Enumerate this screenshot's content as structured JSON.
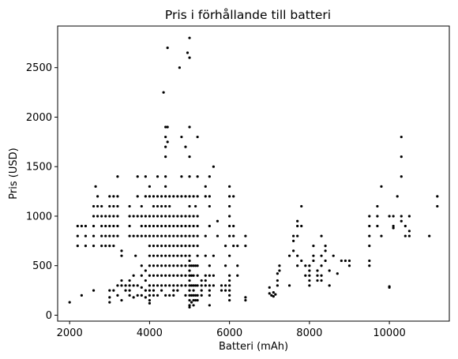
{
  "chart_data": {
    "type": "scatter",
    "title": "Pris i förhållande till batteri",
    "xlabel": "Batteri (mAh)",
    "ylabel": "Pris (USD)",
    "xlim": [
      1700,
      11500
    ],
    "ylim": [
      -60,
      2920
    ],
    "xticks": [
      2000,
      4000,
      6000,
      8000,
      10000
    ],
    "yticks": [
      0,
      500,
      1000,
      1500,
      2000,
      2500
    ],
    "grid": false,
    "legend": "none",
    "marker_color": "#000000",
    "points": [
      [
        2000,
        130
      ],
      [
        2300,
        200
      ],
      [
        2600,
        250
      ],
      [
        2200,
        900
      ],
      [
        2200,
        800
      ],
      [
        2200,
        700
      ],
      [
        2300,
        900
      ],
      [
        2400,
        900
      ],
      [
        2400,
        800
      ],
      [
        2400,
        700
      ],
      [
        2600,
        1100
      ],
      [
        2600,
        1000
      ],
      [
        2600,
        900
      ],
      [
        2600,
        800
      ],
      [
        2600,
        700
      ],
      [
        2650,
        1300
      ],
      [
        2700,
        1200
      ],
      [
        2700,
        1100
      ],
      [
        2700,
        1000
      ],
      [
        2800,
        1100
      ],
      [
        2800,
        1000
      ],
      [
        2800,
        900
      ],
      [
        2800,
        800
      ],
      [
        2800,
        700
      ],
      [
        2900,
        1000
      ],
      [
        2900,
        900
      ],
      [
        2900,
        800
      ],
      [
        2900,
        700
      ],
      [
        3000,
        1200
      ],
      [
        3000,
        1100
      ],
      [
        3000,
        1000
      ],
      [
        3000,
        900
      ],
      [
        3000,
        800
      ],
      [
        3000,
        700
      ],
      [
        3000,
        250
      ],
      [
        3000,
        180
      ],
      [
        3000,
        130
      ],
      [
        3100,
        1200
      ],
      [
        3100,
        1100
      ],
      [
        3100,
        1000
      ],
      [
        3100,
        900
      ],
      [
        3100,
        800
      ],
      [
        3100,
        700
      ],
      [
        3100,
        250
      ],
      [
        3200,
        1400
      ],
      [
        3200,
        1200
      ],
      [
        3200,
        1100
      ],
      [
        3200,
        1000
      ],
      [
        3200,
        900
      ],
      [
        3200,
        800
      ],
      [
        3200,
        300
      ],
      [
        3200,
        200
      ],
      [
        3300,
        650
      ],
      [
        3300,
        600
      ],
      [
        3300,
        350
      ],
      [
        3300,
        300
      ],
      [
        3300,
        150
      ],
      [
        3400,
        300
      ],
      [
        3400,
        250
      ],
      [
        3500,
        1100
      ],
      [
        3500,
        1000
      ],
      [
        3500,
        900
      ],
      [
        3500,
        800
      ],
      [
        3500,
        350
      ],
      [
        3500,
        300
      ],
      [
        3500,
        250
      ],
      [
        3500,
        200
      ],
      [
        3600,
        1000
      ],
      [
        3600,
        800
      ],
      [
        3600,
        400
      ],
      [
        3600,
        300
      ],
      [
        3600,
        180
      ],
      [
        3650,
        600
      ],
      [
        3700,
        1400
      ],
      [
        3700,
        1200
      ],
      [
        3700,
        1000
      ],
      [
        3700,
        800
      ],
      [
        3700,
        300
      ],
      [
        3700,
        200
      ],
      [
        3800,
        1100
      ],
      [
        3800,
        1000
      ],
      [
        3800,
        900
      ],
      [
        3800,
        800
      ],
      [
        3800,
        500
      ],
      [
        3800,
        400
      ],
      [
        3800,
        280
      ],
      [
        3800,
        200
      ],
      [
        3900,
        1400
      ],
      [
        3900,
        1200
      ],
      [
        3900,
        1000
      ],
      [
        3900,
        900
      ],
      [
        3900,
        800
      ],
      [
        3900,
        450
      ],
      [
        3900,
        350
      ],
      [
        3900,
        250
      ],
      [
        3900,
        180
      ],
      [
        4000,
        1300
      ],
      [
        4000,
        1200
      ],
      [
        4000,
        1000
      ],
      [
        4000,
        900
      ],
      [
        4000,
        800
      ],
      [
        4000,
        700
      ],
      [
        4000,
        600
      ],
      [
        4000,
        500
      ],
      [
        4000,
        400
      ],
      [
        4000,
        300
      ],
      [
        4000,
        250
      ],
      [
        4000,
        200
      ],
      [
        4000,
        150
      ],
      [
        4000,
        120
      ],
      [
        4100,
        1200
      ],
      [
        4100,
        1100
      ],
      [
        4100,
        1000
      ],
      [
        4100,
        900
      ],
      [
        4100,
        800
      ],
      [
        4100,
        700
      ],
      [
        4100,
        600
      ],
      [
        4100,
        500
      ],
      [
        4100,
        400
      ],
      [
        4100,
        300
      ],
      [
        4100,
        250
      ],
      [
        4100,
        200
      ],
      [
        4200,
        1400
      ],
      [
        4200,
        1200
      ],
      [
        4200,
        1100
      ],
      [
        4200,
        1000
      ],
      [
        4200,
        900
      ],
      [
        4200,
        800
      ],
      [
        4200,
        700
      ],
      [
        4200,
        600
      ],
      [
        4200,
        500
      ],
      [
        4200,
        400
      ],
      [
        4200,
        300
      ],
      [
        4200,
        200
      ],
      [
        4300,
        1200
      ],
      [
        4300,
        1100
      ],
      [
        4300,
        1000
      ],
      [
        4300,
        900
      ],
      [
        4300,
        800
      ],
      [
        4300,
        700
      ],
      [
        4300,
        600
      ],
      [
        4300,
        500
      ],
      [
        4300,
        400
      ],
      [
        4300,
        300
      ],
      [
        4300,
        250
      ],
      [
        4350,
        2250
      ],
      [
        4400,
        1900
      ],
      [
        4400,
        1800
      ],
      [
        4400,
        1700
      ],
      [
        4400,
        1600
      ],
      [
        4400,
        1400
      ],
      [
        4400,
        1300
      ],
      [
        4400,
        1200
      ],
      [
        4400,
        1100
      ],
      [
        4400,
        1000
      ],
      [
        4400,
        900
      ],
      [
        4400,
        800
      ],
      [
        4400,
        700
      ],
      [
        4400,
        600
      ],
      [
        4400,
        500
      ],
      [
        4400,
        400
      ],
      [
        4400,
        300
      ],
      [
        4400,
        200
      ],
      [
        4450,
        2700
      ],
      [
        4450,
        1900
      ],
      [
        4450,
        1750
      ],
      [
        4500,
        1200
      ],
      [
        4500,
        1100
      ],
      [
        4500,
        1000
      ],
      [
        4500,
        900
      ],
      [
        4500,
        800
      ],
      [
        4500,
        700
      ],
      [
        4500,
        600
      ],
      [
        4500,
        500
      ],
      [
        4500,
        400
      ],
      [
        4500,
        300
      ],
      [
        4500,
        200
      ],
      [
        4600,
        1200
      ],
      [
        4600,
        1000
      ],
      [
        4600,
        900
      ],
      [
        4600,
        800
      ],
      [
        4600,
        700
      ],
      [
        4600,
        600
      ],
      [
        4600,
        500
      ],
      [
        4600,
        400
      ],
      [
        4600,
        300
      ],
      [
        4600,
        250
      ],
      [
        4600,
        200
      ],
      [
        4700,
        1200
      ],
      [
        4700,
        1000
      ],
      [
        4700,
        900
      ],
      [
        4700,
        800
      ],
      [
        4700,
        700
      ],
      [
        4700,
        600
      ],
      [
        4700,
        500
      ],
      [
        4700,
        400
      ],
      [
        4700,
        300
      ],
      [
        4700,
        250
      ],
      [
        4750,
        2500
      ],
      [
        4800,
        1800
      ],
      [
        4800,
        1400
      ],
      [
        4800,
        1200
      ],
      [
        4800,
        1000
      ],
      [
        4800,
        900
      ],
      [
        4800,
        800
      ],
      [
        4800,
        700
      ],
      [
        4800,
        600
      ],
      [
        4800,
        500
      ],
      [
        4800,
        400
      ],
      [
        4800,
        300
      ],
      [
        4900,
        1700
      ],
      [
        4900,
        1200
      ],
      [
        4900,
        1000
      ],
      [
        4900,
        900
      ],
      [
        4900,
        800
      ],
      [
        4900,
        700
      ],
      [
        4900,
        600
      ],
      [
        4900,
        500
      ],
      [
        4900,
        400
      ],
      [
        4900,
        300
      ],
      [
        4900,
        200
      ],
      [
        4950,
        2650
      ],
      [
        5000,
        2800
      ],
      [
        5000,
        2600
      ],
      [
        5000,
        1900
      ],
      [
        5000,
        1600
      ],
      [
        5000,
        1400
      ],
      [
        5000,
        1200
      ],
      [
        5000,
        1100
      ],
      [
        5000,
        1000
      ],
      [
        5000,
        900
      ],
      [
        5000,
        800
      ],
      [
        5000,
        700
      ],
      [
        5000,
        600
      ],
      [
        5000,
        550
      ],
      [
        5000,
        500
      ],
      [
        5000,
        450
      ],
      [
        5000,
        400
      ],
      [
        5000,
        350
      ],
      [
        5000,
        300
      ],
      [
        5000,
        250
      ],
      [
        5000,
        200
      ],
      [
        5000,
        150
      ],
      [
        5000,
        100
      ],
      [
        5000,
        80
      ],
      [
        5050,
        500
      ],
      [
        5050,
        400
      ],
      [
        5050,
        300
      ],
      [
        5050,
        200
      ],
      [
        5050,
        130
      ],
      [
        5100,
        1200
      ],
      [
        5100,
        1000
      ],
      [
        5100,
        900
      ],
      [
        5100,
        800
      ],
      [
        5100,
        700
      ],
      [
        5100,
        500
      ],
      [
        5100,
        400
      ],
      [
        5100,
        300
      ],
      [
        5100,
        250
      ],
      [
        5100,
        200
      ],
      [
        5100,
        150
      ],
      [
        5100,
        100
      ],
      [
        5150,
        1100
      ],
      [
        5150,
        500
      ],
      [
        5150,
        300
      ],
      [
        5150,
        200
      ],
      [
        5150,
        150
      ],
      [
        5200,
        1800
      ],
      [
        5200,
        1400
      ],
      [
        5200,
        1200
      ],
      [
        5200,
        1000
      ],
      [
        5200,
        900
      ],
      [
        5200,
        800
      ],
      [
        5200,
        700
      ],
      [
        5200,
        600
      ],
      [
        5200,
        500
      ],
      [
        5200,
        400
      ],
      [
        5200,
        300
      ],
      [
        5200,
        200
      ],
      [
        5200,
        150
      ],
      [
        5300,
        350
      ],
      [
        5300,
        300
      ],
      [
        5300,
        250
      ],
      [
        5300,
        200
      ],
      [
        5400,
        1300
      ],
      [
        5400,
        1200
      ],
      [
        5400,
        800
      ],
      [
        5400,
        600
      ],
      [
        5400,
        400
      ],
      [
        5400,
        350
      ],
      [
        5400,
        300
      ],
      [
        5500,
        1400
      ],
      [
        5500,
        1200
      ],
      [
        5500,
        1100
      ],
      [
        5500,
        900
      ],
      [
        5500,
        500
      ],
      [
        5500,
        400
      ],
      [
        5500,
        300
      ],
      [
        5500,
        250
      ],
      [
        5500,
        200
      ],
      [
        5500,
        100
      ],
      [
        5600,
        1500
      ],
      [
        5600,
        600
      ],
      [
        5600,
        400
      ],
      [
        5600,
        300
      ],
      [
        5700,
        950
      ],
      [
        5700,
        800
      ],
      [
        5800,
        300
      ],
      [
        5800,
        250
      ],
      [
        5900,
        700
      ],
      [
        5900,
        500
      ],
      [
        5900,
        300
      ],
      [
        5900,
        250
      ],
      [
        6000,
        1300
      ],
      [
        6000,
        1200
      ],
      [
        6000,
        1100
      ],
      [
        6000,
        1000
      ],
      [
        6000,
        900
      ],
      [
        6000,
        800
      ],
      [
        6000,
        600
      ],
      [
        6000,
        400
      ],
      [
        6000,
        350
      ],
      [
        6000,
        300
      ],
      [
        6000,
        250
      ],
      [
        6000,
        200
      ],
      [
        6000,
        150
      ],
      [
        6100,
        1200
      ],
      [
        6100,
        900
      ],
      [
        6100,
        800
      ],
      [
        6100,
        700
      ],
      [
        6200,
        700
      ],
      [
        6200,
        500
      ],
      [
        6200,
        400
      ],
      [
        6400,
        800
      ],
      [
        6400,
        700
      ],
      [
        6400,
        180
      ],
      [
        6400,
        150
      ],
      [
        7000,
        280
      ],
      [
        7000,
        220
      ],
      [
        7050,
        200
      ],
      [
        7100,
        230
      ],
      [
        7100,
        190
      ],
      [
        7150,
        210
      ],
      [
        7200,
        420
      ],
      [
        7200,
        350
      ],
      [
        7200,
        300
      ],
      [
        7250,
        500
      ],
      [
        7250,
        450
      ],
      [
        7500,
        600
      ],
      [
        7500,
        300
      ],
      [
        7600,
        800
      ],
      [
        7600,
        750
      ],
      [
        7600,
        650
      ],
      [
        7700,
        950
      ],
      [
        7700,
        900
      ],
      [
        7700,
        800
      ],
      [
        7700,
        600
      ],
      [
        7700,
        500
      ],
      [
        7800,
        1100
      ],
      [
        7800,
        900
      ],
      [
        7800,
        550
      ],
      [
        7900,
        500
      ],
      [
        7900,
        400
      ],
      [
        8000,
        500
      ],
      [
        8000,
        450
      ],
      [
        8000,
        400
      ],
      [
        8000,
        350
      ],
      [
        8000,
        300
      ],
      [
        8100,
        700
      ],
      [
        8100,
        600
      ],
      [
        8100,
        550
      ],
      [
        8200,
        450
      ],
      [
        8200,
        400
      ],
      [
        8200,
        350
      ],
      [
        8300,
        800
      ],
      [
        8300,
        600
      ],
      [
        8300,
        500
      ],
      [
        8300,
        400
      ],
      [
        8300,
        350
      ],
      [
        8400,
        700
      ],
      [
        8400,
        650
      ],
      [
        8400,
        550
      ],
      [
        8500,
        300
      ],
      [
        8500,
        450
      ],
      [
        8600,
        600
      ],
      [
        8700,
        420
      ],
      [
        8800,
        550
      ],
      [
        8900,
        550
      ],
      [
        9000,
        550
      ],
      [
        9000,
        500
      ],
      [
        9500,
        1000
      ],
      [
        9500,
        900
      ],
      [
        9500,
        800
      ],
      [
        9500,
        700
      ],
      [
        9500,
        550
      ],
      [
        9500,
        500
      ],
      [
        9700,
        1100
      ],
      [
        9700,
        1000
      ],
      [
        9700,
        900
      ],
      [
        9800,
        1300
      ],
      [
        9800,
        800
      ],
      [
        10000,
        1000
      ],
      [
        10000,
        290
      ],
      [
        10000,
        280
      ],
      [
        10100,
        1000
      ],
      [
        10100,
        900
      ],
      [
        10100,
        880
      ],
      [
        10200,
        1200
      ],
      [
        10300,
        1800
      ],
      [
        10300,
        1600
      ],
      [
        10300,
        1400
      ],
      [
        10300,
        1000
      ],
      [
        10300,
        950
      ],
      [
        10400,
        900
      ],
      [
        10400,
        800
      ],
      [
        10500,
        1000
      ],
      [
        10500,
        850
      ],
      [
        10500,
        800
      ],
      [
        11000,
        800
      ],
      [
        11200,
        1200
      ],
      [
        11200,
        1100
      ]
    ]
  }
}
